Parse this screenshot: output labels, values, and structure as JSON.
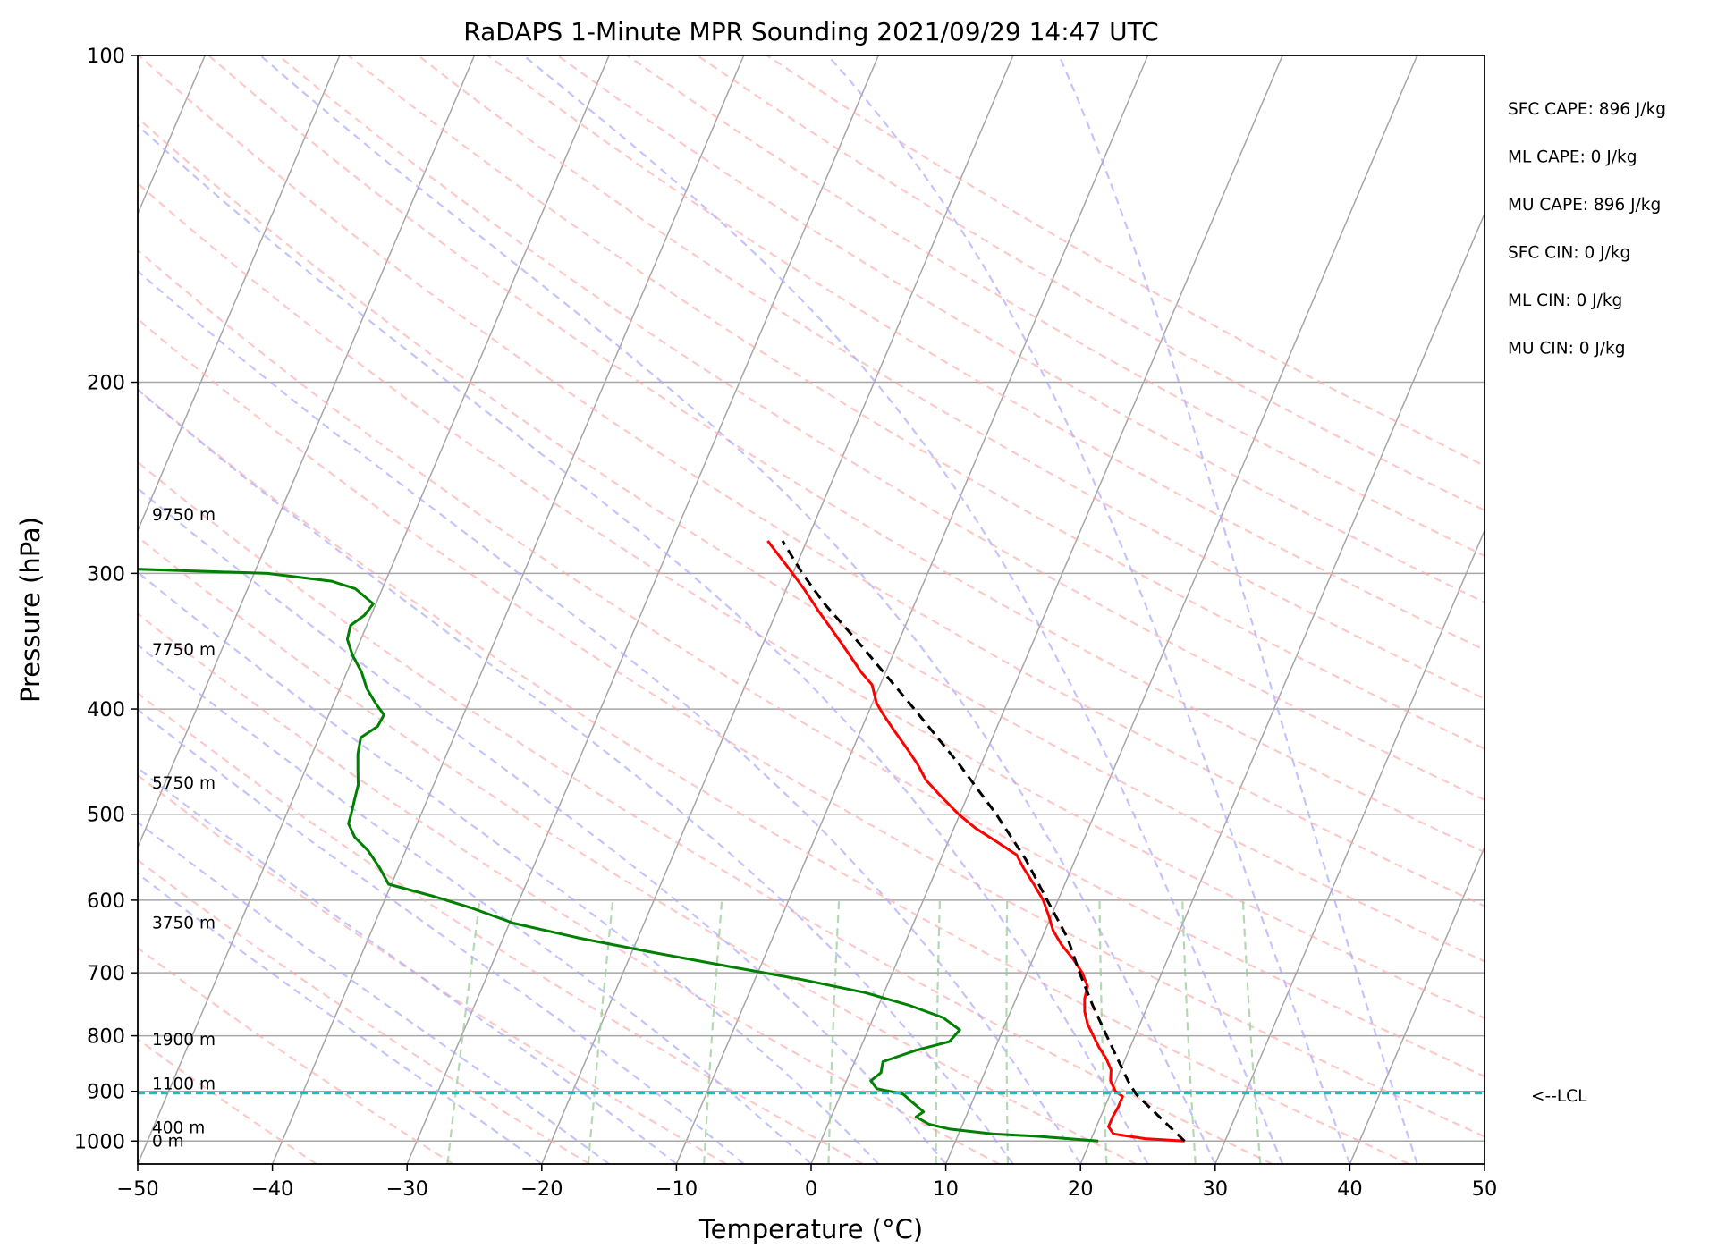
{
  "chart_data": {
    "type": "line",
    "title": "RaDAPS 1-Minute MPR Sounding 2021/09/29 14:47 UTC",
    "xlabel": "Temperature (°C)",
    "ylabel": "Pressure (hPa)",
    "xlim": [
      -50,
      50
    ],
    "ylim": [
      1050,
      100
    ],
    "y_scale": "log",
    "skew": "skew-T log-p",
    "x_ticks": [
      -50,
      -40,
      -30,
      -20,
      -10,
      0,
      10,
      20,
      30,
      40,
      50
    ],
    "x_tick_labels": [
      "−50",
      "−40",
      "−30",
      "−20",
      "−10",
      "0",
      "10",
      "20",
      "30",
      "40",
      "50"
    ],
    "y_ticks": [
      100,
      200,
      300,
      400,
      500,
      600,
      700,
      800,
      900,
      1000
    ],
    "y_tick_labels": [
      "100",
      "200",
      "300",
      "400",
      "500",
      "600",
      "700",
      "800",
      "900",
      "1000"
    ],
    "grid": true,
    "colors": {
      "temperature": "#ff0000",
      "dewpoint": "#008000",
      "parcel": "#000000",
      "dry_adiabat": "#ffaaaa",
      "moist_adiabat": "#aaaaff",
      "mixing_ratio": "#99cc99",
      "lcl_line": "#17becf",
      "isotherm": "#a6a6a6"
    },
    "series": [
      {
        "key": "temperature",
        "points": [
          [
            1000,
            27.0
          ],
          [
            995,
            24.0
          ],
          [
            985,
            21.5
          ],
          [
            970,
            20.9
          ],
          [
            950,
            20.9
          ],
          [
            930,
            21.0
          ],
          [
            910,
            21.0
          ],
          [
            900,
            20.3
          ],
          [
            880,
            19.6
          ],
          [
            860,
            19.3
          ],
          [
            840,
            18.6
          ],
          [
            820,
            17.7
          ],
          [
            800,
            16.9
          ],
          [
            780,
            16.1
          ],
          [
            760,
            15.5
          ],
          [
            740,
            15.1
          ],
          [
            720,
            14.9
          ],
          [
            700,
            14.1
          ],
          [
            680,
            13.0
          ],
          [
            660,
            11.7
          ],
          [
            640,
            10.6
          ],
          [
            620,
            9.8
          ],
          [
            600,
            8.9
          ],
          [
            580,
            7.7
          ],
          [
            560,
            6.4
          ],
          [
            545,
            5.5
          ],
          [
            530,
            3.6
          ],
          [
            515,
            1.6
          ],
          [
            500,
            -0.1
          ],
          [
            480,
            -2.1
          ],
          [
            465,
            -3.6
          ],
          [
            450,
            -4.7
          ],
          [
            435,
            -6.0
          ],
          [
            420,
            -7.4
          ],
          [
            405,
            -8.8
          ],
          [
            395,
            -9.7
          ],
          [
            380,
            -10.6
          ],
          [
            370,
            -11.8
          ],
          [
            355,
            -13.4
          ],
          [
            340,
            -15.1
          ],
          [
            325,
            -16.9
          ],
          [
            310,
            -18.7
          ],
          [
            298,
            -20.3
          ],
          [
            280,
            -22.9
          ]
        ]
      },
      {
        "key": "dewpoint",
        "points": [
          [
            1000,
            20.6
          ],
          [
            990,
            16.0
          ],
          [
            985,
            12.5
          ],
          [
            975,
            9.2
          ],
          [
            965,
            7.5
          ],
          [
            950,
            6.3
          ],
          [
            940,
            6.7
          ],
          [
            920,
            5.5
          ],
          [
            905,
            4.6
          ],
          [
            895,
            2.5
          ],
          [
            880,
            1.8
          ],
          [
            865,
            2.3
          ],
          [
            845,
            2.1
          ],
          [
            825,
            4.2
          ],
          [
            810,
            6.4
          ],
          [
            790,
            6.8
          ],
          [
            770,
            5.2
          ],
          [
            750,
            2.3
          ],
          [
            730,
            -1.4
          ],
          [
            710,
            -6.5
          ],
          [
            690,
            -12.5
          ],
          [
            670,
            -18.5
          ],
          [
            650,
            -24.4
          ],
          [
            630,
            -29.7
          ],
          [
            610,
            -33.3
          ],
          [
            595,
            -36.5
          ],
          [
            580,
            -40.2
          ],
          [
            560,
            -41.4
          ],
          [
            540,
            -42.8
          ],
          [
            525,
            -44.2
          ],
          [
            510,
            -45.1
          ],
          [
            500,
            -45.2
          ],
          [
            485,
            -45.4
          ],
          [
            470,
            -45.6
          ],
          [
            455,
            -46.1
          ],
          [
            440,
            -46.6
          ],
          [
            425,
            -46.9
          ],
          [
            415,
            -46.0
          ],
          [
            405,
            -45.9
          ],
          [
            395,
            -46.9
          ],
          [
            383,
            -48.0
          ],
          [
            370,
            -48.9
          ],
          [
            357,
            -50.1
          ],
          [
            345,
            -51.0
          ],
          [
            335,
            -51.2
          ],
          [
            328,
            -50.5
          ],
          [
            320,
            -50.2
          ],
          [
            310,
            -52.0
          ],
          [
            305,
            -54.0
          ],
          [
            300,
            -59.0
          ],
          [
            297,
            -70.0
          ],
          [
            291,
            -72.5
          ],
          [
            286,
            -73.7
          ],
          [
            283,
            -77.0
          ]
        ]
      },
      {
        "key": "parcel",
        "dashed": true,
        "points": [
          [
            1000,
            27.0
          ],
          [
            960,
            24.9
          ],
          [
            905,
            21.9
          ],
          [
            880,
            20.9
          ],
          [
            850,
            19.8
          ],
          [
            800,
            17.9
          ],
          [
            750,
            15.9
          ],
          [
            700,
            13.9
          ],
          [
            650,
            11.9
          ],
          [
            600,
            9.2
          ],
          [
            550,
            6.3
          ],
          [
            500,
            2.7
          ],
          [
            450,
            -1.6
          ],
          [
            400,
            -6.7
          ],
          [
            350,
            -12.6
          ],
          [
            320,
            -16.7
          ],
          [
            300,
            -19.3
          ],
          [
            280,
            -21.8
          ]
        ]
      }
    ],
    "lcl": {
      "pressure": 904,
      "label": "<--LCL"
    },
    "height_labels": [
      {
        "pressure": 1000,
        "text": "0 m"
      },
      {
        "pressure": 972,
        "text": "400 m"
      },
      {
        "pressure": 886,
        "text": "1100 m"
      },
      {
        "pressure": 807,
        "text": "1900 m"
      },
      {
        "pressure": 630,
        "text": "3750 m"
      },
      {
        "pressure": 468,
        "text": "5750 m"
      },
      {
        "pressure": 353,
        "text": "7750 m"
      },
      {
        "pressure": 265,
        "text": "9750 m"
      }
    ],
    "annotations": [
      "SFC CAPE: 896 J/kg",
      "ML CAPE: 0 J/kg",
      "MU CAPE: 896 J/kg",
      "SFC CIN: 0 J/kg",
      "ML CIN: 0 J/kg",
      "MU CIN: 0 J/kg"
    ]
  }
}
